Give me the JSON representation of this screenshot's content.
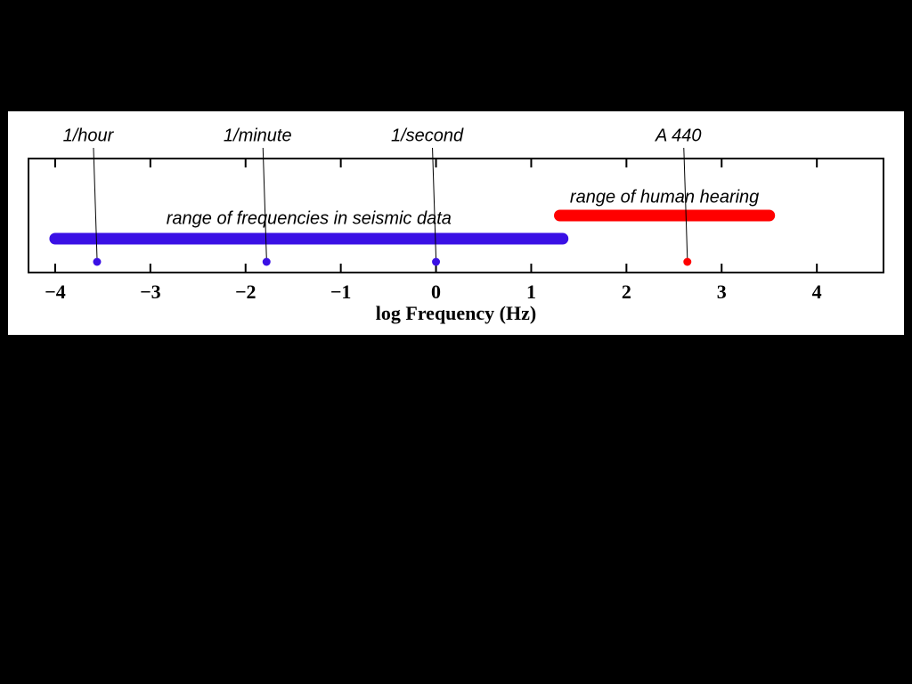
{
  "chart_data": {
    "type": "range",
    "xlabel": "log Frequency (Hz)",
    "xlim": [
      -4.28,
      4.7
    ],
    "xticks": [
      {
        "value": -4,
        "label": "−4"
      },
      {
        "value": -3,
        "label": "−3"
      },
      {
        "value": -2,
        "label": "−2"
      },
      {
        "value": -1,
        "label": "−1"
      },
      0,
      1,
      2,
      3,
      4
    ],
    "ranges": [
      {
        "name": "range of frequencies in seismic data",
        "color": "#3a10e5",
        "values": [
          -4,
          1.33
        ]
      },
      {
        "name": "range of human hearing",
        "color": "#ff0000",
        "values": [
          1.3,
          3.5
        ]
      }
    ],
    "points": [
      {
        "label": "1/hour",
        "color": "#3a10e5",
        "value": -3.56
      },
      {
        "label": "1/minute",
        "color": "#3a10e5",
        "value": -1.78
      },
      {
        "label": "1/second",
        "color": "#3a10e5",
        "value": 0
      },
      {
        "label": "A 440",
        "color": "#ff0000",
        "value": 2.64
      }
    ]
  }
}
